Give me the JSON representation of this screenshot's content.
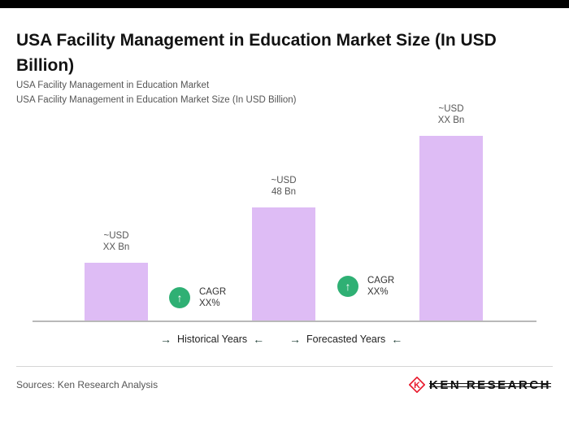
{
  "page": {
    "title": "USA Facility Management in Education Market Size (In USD Billion)",
    "subtitle_line1": "USA Facility Management in Education Market",
    "subtitle_line2": "USA Facility Management in Education Market Size (In USD Billion)",
    "sources": "Sources: Ken Research Analysis"
  },
  "chart_data": {
    "type": "bar",
    "title": "USA Facility Management in Education Market Size (In USD Billion)",
    "categories": [
      "Historical Years",
      "",
      "Forecasted Years"
    ],
    "bars": [
      {
        "label_top": "~USD",
        "label_bottom": "XX Bn",
        "value": "XX",
        "relative_height": 71
      },
      {
        "label_top": "~USD",
        "label_bottom": "48 Bn",
        "value": 48,
        "relative_height": 139
      },
      {
        "label_top": "~USD",
        "label_bottom": "XX Bn",
        "value": "XX",
        "relative_height": 227
      }
    ],
    "bar_color": "#DEBCF5",
    "cagr_badges": [
      {
        "arrow": "↑",
        "label": "CAGR",
        "value": "XX%"
      },
      {
        "arrow": "↑",
        "label": "CAGR",
        "value": "XX%"
      }
    ],
    "legend": [
      {
        "arrow_left": "→",
        "text": "Historical Years",
        "arrow_right": "←"
      },
      {
        "arrow_left": "→",
        "text": "Forecasted Years",
        "arrow_right": "←"
      }
    ],
    "xlabel": "",
    "ylabel": "",
    "grid": false,
    "legend_position": "bottom"
  },
  "logo": {
    "text": "KEN RESEARCH",
    "accent_color": "#E8192C"
  }
}
